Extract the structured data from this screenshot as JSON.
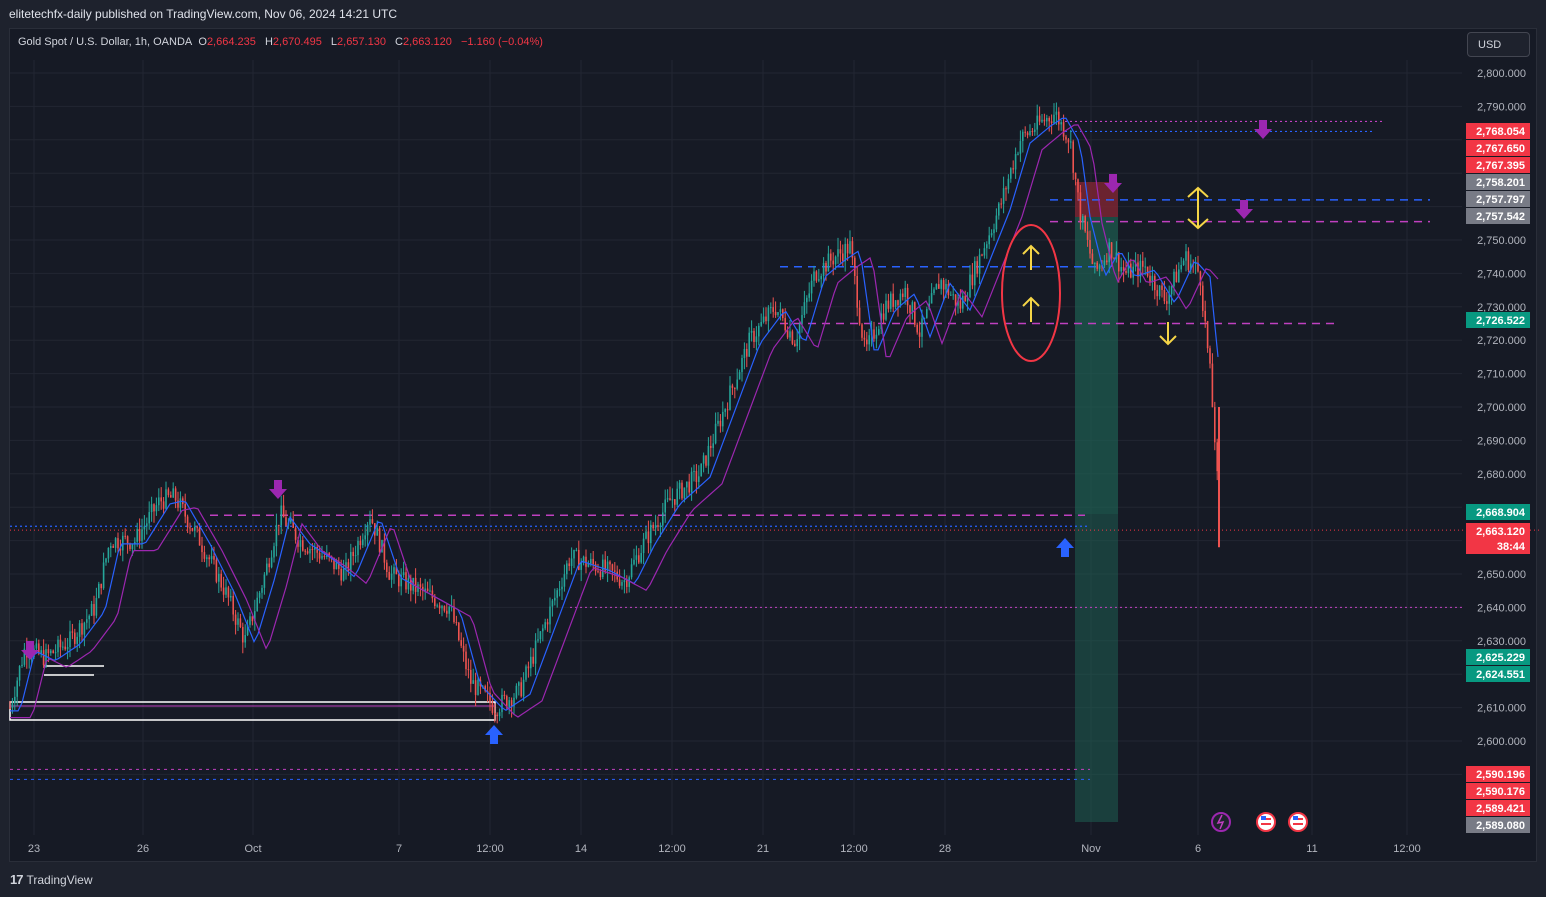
{
  "header": {
    "publisher_line": "elitetechfx-daily published on TradingView.com, Nov 06, 2024 14:21 UTC"
  },
  "legend": {
    "symbol": "Gold Spot / U.S. Dollar, 1h, OANDA",
    "open_key": "O",
    "open": "2,664.235",
    "high_key": "H",
    "high": "2,670.495",
    "low_key": "L",
    "low": "2,657.130",
    "close_key": "C",
    "close": "2,663.120",
    "change": "−1.160 (−0.04%)"
  },
  "currency_button": "USD",
  "colors": {
    "background": "#161a25",
    "up_candle": "#26a69a",
    "down_candle": "#ef5350",
    "ema_fast": "#2962ff",
    "ema_slow": "#9c27b0",
    "magenta_line": "#c040c0",
    "blue_line": "#2962ff",
    "yellow_arrow": "#f5d547",
    "purple_marker": "#9c27b0",
    "blue_marker": "#2962ff",
    "long_zone": "#1f5e52",
    "short_zone": "#7a2633"
  },
  "y_axis": {
    "ticks": [
      "2,800.000",
      "2,790.000",
      "2,750.000",
      "2,740.000",
      "2,730.000",
      "2,720.000",
      "2,710.000",
      "2,700.000",
      "2,690.000",
      "2,680.000",
      "2,650.000",
      "2,640.000",
      "2,630.000",
      "2,610.000",
      "2,600.000"
    ],
    "tick_values": [
      2800,
      2790,
      2750,
      2740,
      2730,
      2720,
      2710,
      2700,
      2690,
      2680,
      2650,
      2640,
      2630,
      2610,
      2600
    ]
  },
  "x_axis": {
    "ticks": [
      "23",
      "26",
      "Oct",
      "7",
      "12:00",
      "14",
      "12:00",
      "21",
      "12:00",
      "28",
      "Nov",
      "6",
      "11",
      "12:00"
    ]
  },
  "price_labels": [
    {
      "text": "2,768.054",
      "color": "#f23645"
    },
    {
      "text": "2,767.650",
      "color": "#f23645"
    },
    {
      "text": "2,767.395",
      "color": "#f23645"
    },
    {
      "text": "2,758.201",
      "color": "#787b86"
    },
    {
      "text": "2,757.797",
      "color": "#787b86"
    },
    {
      "text": "2,757.542",
      "color": "#787b86"
    },
    {
      "text": "2,726.522",
      "color": "#089981"
    },
    {
      "text": "2,668.904",
      "color": "#089981"
    },
    {
      "text": "2,663.120",
      "color": "#f23645"
    },
    {
      "text": "38:44",
      "color": "#f23645"
    },
    {
      "text": "2,625.229",
      "color": "#089981"
    },
    {
      "text": "2,624.551",
      "color": "#089981"
    },
    {
      "text": "2,590.196",
      "color": "#f23645"
    },
    {
      "text": "2,590.176",
      "color": "#f23645"
    },
    {
      "text": "2,589.421",
      "color": "#f23645"
    },
    {
      "text": "2,589.080",
      "color": "#787b86"
    }
  ],
  "events": [
    "lightning-icon",
    "us-flag-icon",
    "us-flag-icon"
  ],
  "footer": {
    "brand": "TradingView"
  }
}
